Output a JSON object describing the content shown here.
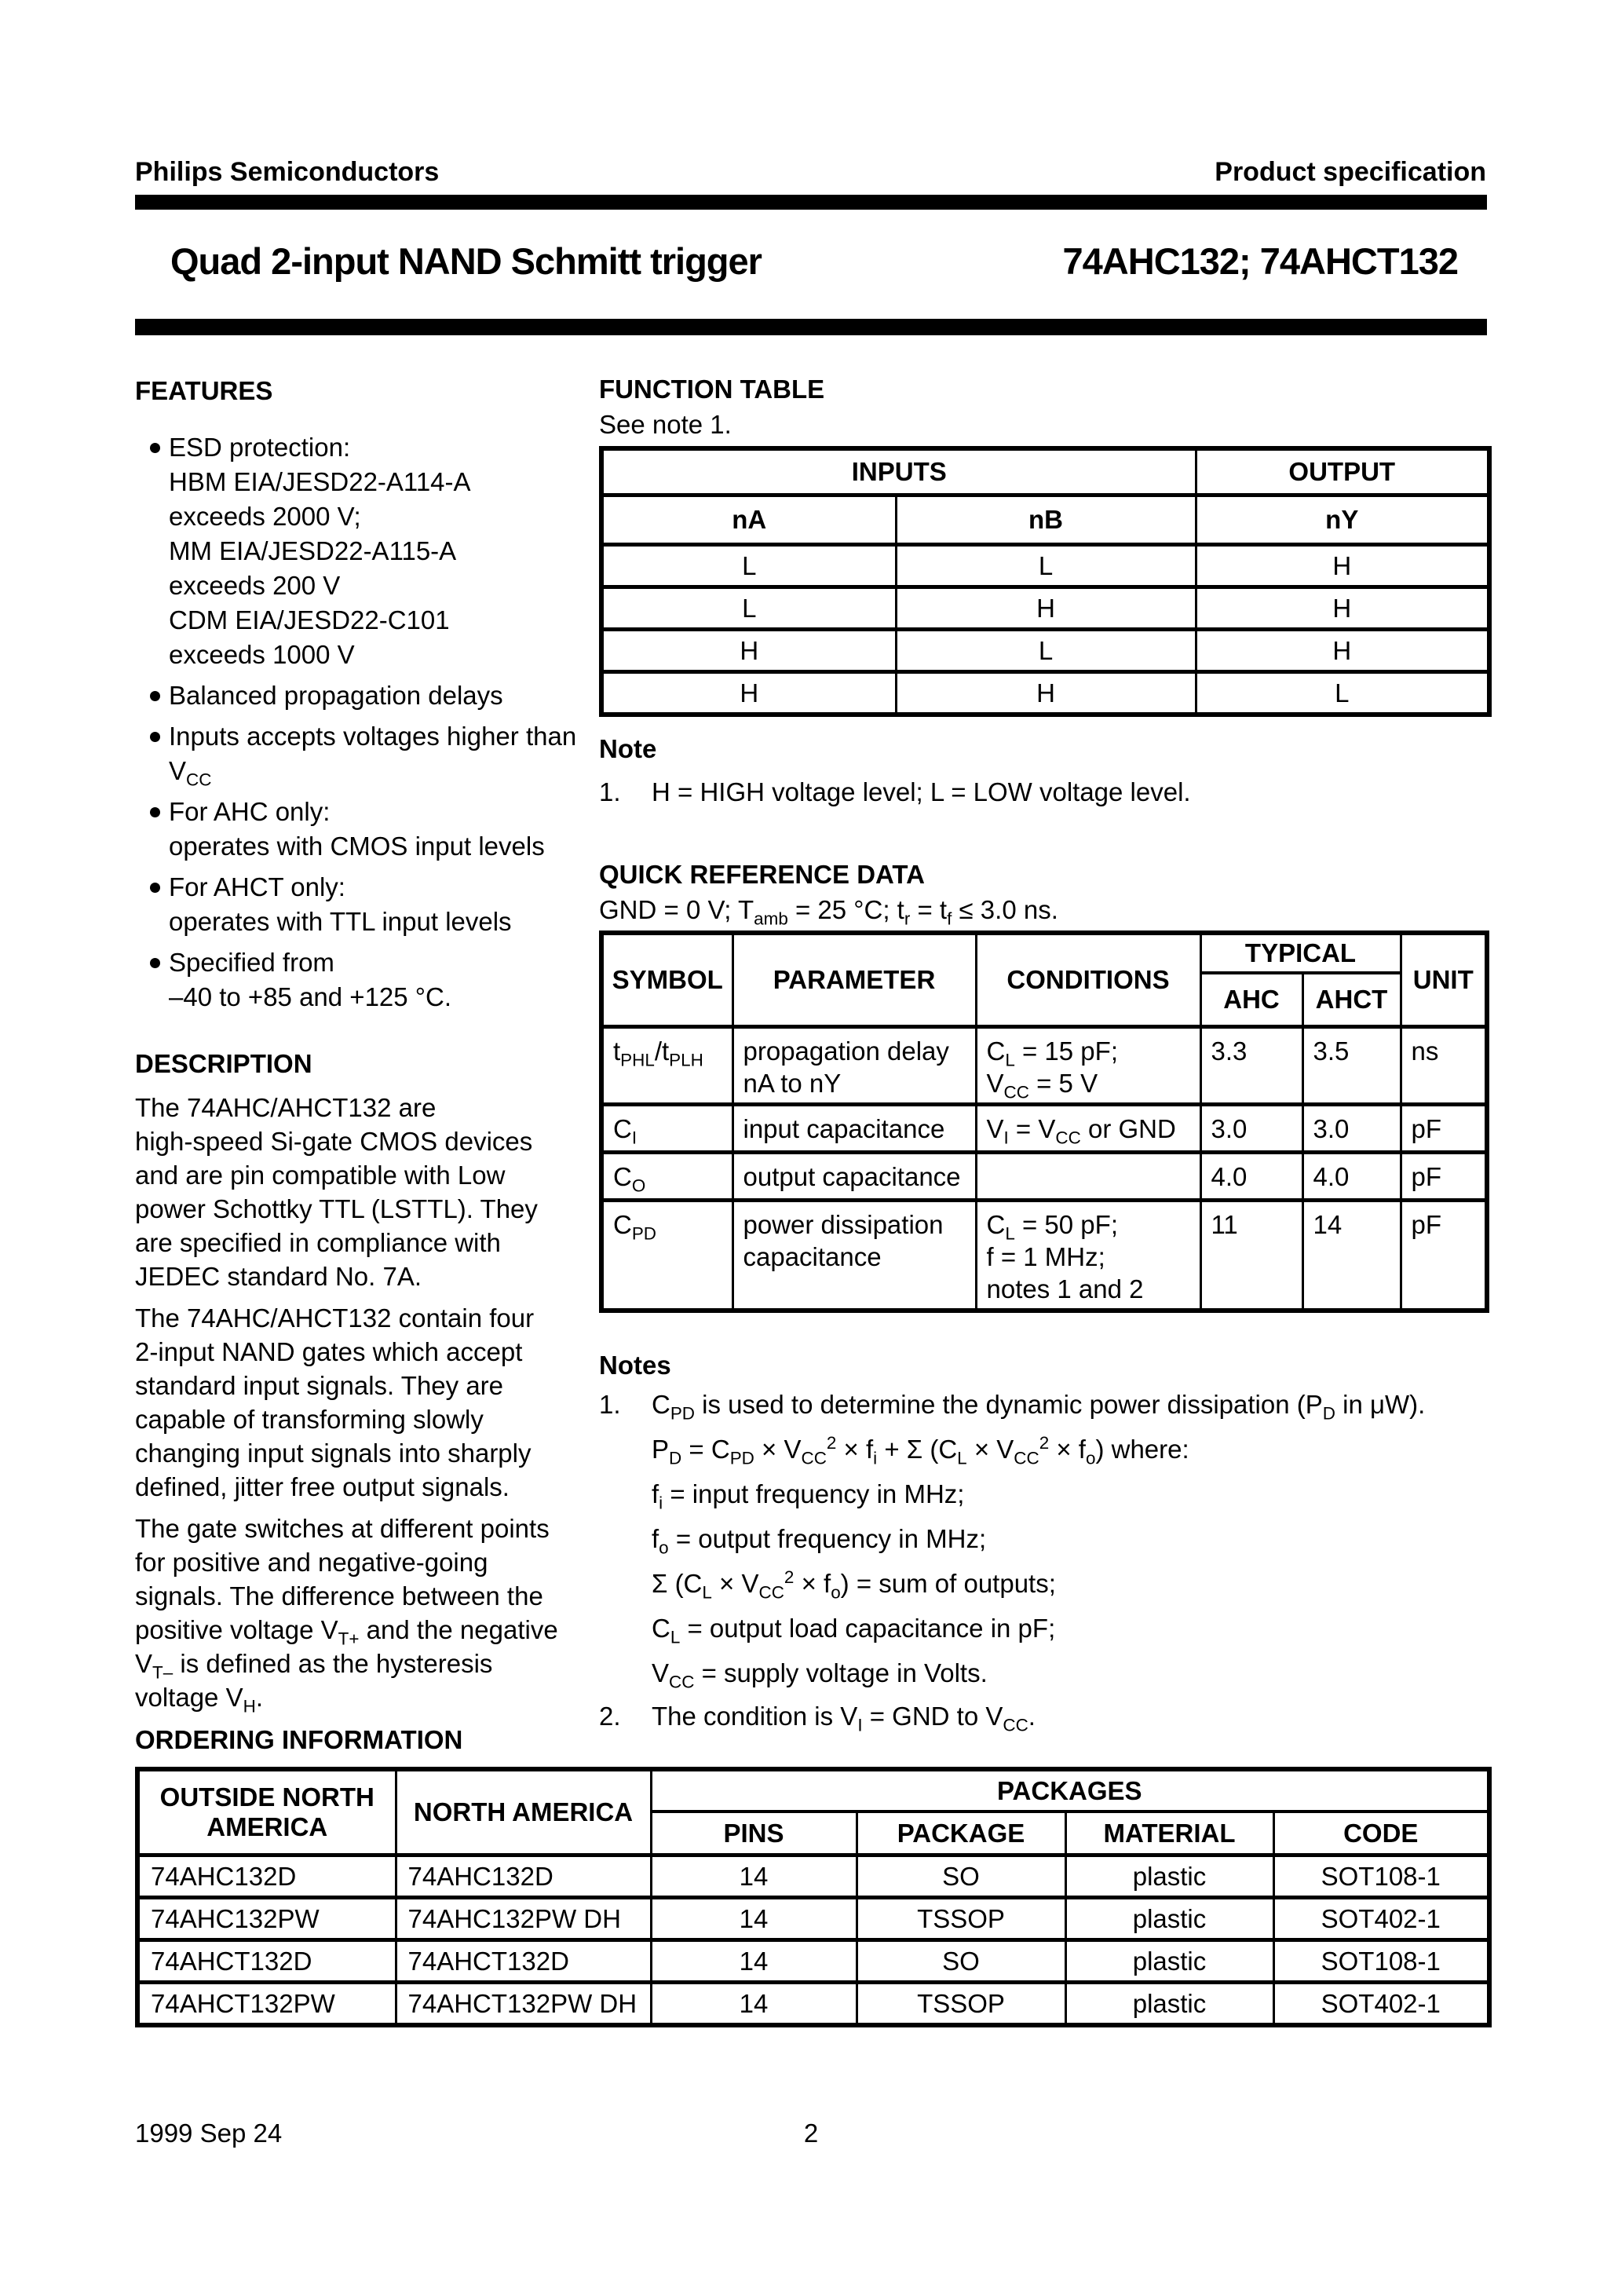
{
  "page": {
    "header_left": "Philips Semiconductors",
    "header_right": "Product specification",
    "title": "Quad 2-input NAND Schmitt trigger",
    "part_numbers": "74AHC132; 74AHCT132",
    "footer_date": "1999 Sep 24",
    "footer_page": "2"
  },
  "features": {
    "heading": "FEATURES",
    "items": [
      {
        "lines": [
          "ESD protection:",
          "HBM EIA/JESD22-A114-A",
          "exceeds 2000 V;",
          "MM EIA/JESD22-A115-A",
          "exceeds 200 V",
          "CDM EIA/JESD22-C101",
          "exceeds 1000 V"
        ]
      },
      {
        "lines": [
          "Balanced propagation delays"
        ]
      },
      {
        "lines": [
          "Inputs accepts voltages higher than",
          "V~CC~"
        ]
      },
      {
        "lines": [
          "For AHC only:",
          "operates with CMOS input levels"
        ]
      },
      {
        "lines": [
          "For AHCT only:",
          "operates with TTL input levels"
        ]
      },
      {
        "lines": [
          "Specified from",
          "–40 to +85 and +125 °C."
        ]
      }
    ]
  },
  "description": {
    "heading": "DESCRIPTION",
    "paragraphs": [
      {
        "lines": [
          "The 74AHC/AHCT132 are",
          "high-speed Si-gate CMOS devices",
          "and are pin compatible with Low",
          "power Schottky TTL (LSTTL). They",
          "are specified in compliance with",
          "JEDEC standard No. 7A."
        ]
      },
      {
        "lines": [
          "The 74AHC/AHCT132 contain four",
          "2-input NAND gates which accept",
          "standard input signals. They are",
          "capable of transforming slowly",
          "changing input signals into sharply",
          "defined, jitter free output signals."
        ]
      },
      {
        "lines": [
          "The gate switches at different points",
          "for positive and negative-going",
          "signals. The difference between the",
          "positive voltage V~T+~ and the negative",
          "V~T–~ is defined as the hysteresis",
          "voltage V~H~."
        ]
      }
    ]
  },
  "function_table": {
    "heading": "FUNCTION TABLE",
    "intro": "See note 1.",
    "inputs_header": "INPUTS",
    "output_header": "OUTPUT",
    "columns": [
      "nA",
      "nB",
      "nY"
    ],
    "rows": [
      [
        "L",
        "L",
        "H"
      ],
      [
        "L",
        "H",
        "H"
      ],
      [
        "H",
        "L",
        "H"
      ],
      [
        "H",
        "H",
        "L"
      ]
    ],
    "note_heading": "Note",
    "note_items": [
      {
        "num": "1.",
        "text": "H = HIGH voltage level; L = LOW voltage level."
      }
    ]
  },
  "quick_reference": {
    "heading": "QUICK REFERENCE DATA",
    "conditions_line": "GND = 0 V; T~amb~ = 25 °C; t~r~ = t~f~ ≤ 3.0 ns.",
    "col_symbol": "SYMBOL",
    "col_parameter": "PARAMETER",
    "col_conditions": "CONDITIONS",
    "col_typical": "TYPICAL",
    "col_ahc": "AHC",
    "col_ahct": "AHCT",
    "col_unit": "UNIT",
    "rows": [
      {
        "symbol": "t~PHL~/t~PLH~",
        "parameter": [
          "propagation delay",
          "nA to nY"
        ],
        "conditions": [
          "C~L~ = 15 pF;",
          "V~CC~ = 5 V"
        ],
        "ahc": "3.3",
        "ahct": "3.5",
        "unit": "ns"
      },
      {
        "symbol": "C~I~",
        "parameter": [
          "input capacitance"
        ],
        "conditions": [
          "V~I~ = V~CC~ or GND"
        ],
        "ahc": "3.0",
        "ahct": "3.0",
        "unit": "pF"
      },
      {
        "symbol": "C~O~",
        "parameter": [
          "output capacitance"
        ],
        "conditions": [],
        "ahc": "4.0",
        "ahct": "4.0",
        "unit": "pF"
      },
      {
        "symbol": "C~PD~",
        "parameter": [
          "power dissipation",
          "capacitance"
        ],
        "conditions": [
          "C~L~ = 50 pF;",
          "f = 1 MHz;",
          "notes 1 and 2"
        ],
        "ahc": "11",
        "ahct": "14",
        "unit": "pF"
      }
    ],
    "notes_heading": "Notes",
    "notes": [
      {
        "num": "1.",
        "lines": [
          "C~PD~ is used to determine the dynamic power dissipation (P~D~ in μW).",
          "P~D~ = C~PD~ × V~CC~^2^ × f~i~ + Σ (C~L~ × V~CC~^2^ × f~o~) where:",
          "f~i~ = input frequency in MHz;",
          "f~o~ = output frequency in MHz;",
          "Σ (C~L~ × V~CC~^2^ × f~o~) = sum of outputs;",
          "C~L~ = output load capacitance in pF;",
          "V~CC~ = supply voltage in Volts."
        ]
      },
      {
        "num": "2.",
        "lines": [
          "The condition is V~I~ = GND to V~CC~."
        ]
      }
    ]
  },
  "ordering": {
    "heading": "ORDERING INFORMATION",
    "col_outside_na": "OUTSIDE NORTH AMERICA",
    "col_na": "NORTH AMERICA",
    "col_packages": "PACKAGES",
    "sub_columns": [
      "PINS",
      "PACKAGE",
      "MATERIAL",
      "CODE"
    ],
    "rows": [
      [
        "74AHC132D",
        "74AHC132D",
        "14",
        "SO",
        "plastic",
        "SOT108-1"
      ],
      [
        "74AHC132PW",
        "74AHC132PW DH",
        "14",
        "TSSOP",
        "plastic",
        "SOT402-1"
      ],
      [
        "74AHCT132D",
        "74AHCT132D",
        "14",
        "SO",
        "plastic",
        "SOT108-1"
      ],
      [
        "74AHCT132PW",
        "74AHCT132PW DH",
        "14",
        "TSSOP",
        "plastic",
        "SOT402-1"
      ]
    ]
  }
}
